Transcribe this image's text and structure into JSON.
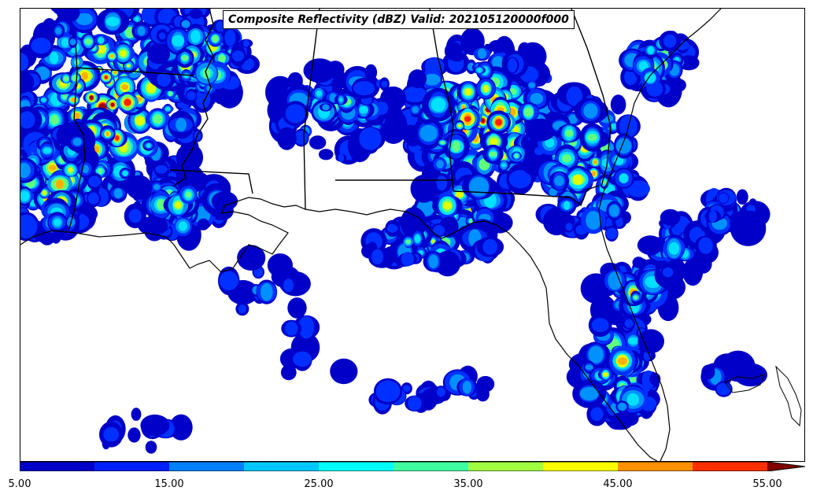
{
  "title": "Composite Reflectivity (dBZ) Valid: 202105120000f000",
  "colorbar": {
    "colors": [
      "#0000c8",
      "#0020ff",
      "#0080ff",
      "#00c8ff",
      "#00ffff",
      "#40ffa0",
      "#a0ff40",
      "#ffff00",
      "#ff9000",
      "#ff3000",
      "#c00000",
      "#800000"
    ],
    "tick_labels": [
      "5.00",
      "15.00",
      "25.00",
      "35.00",
      "45.00",
      "55.00"
    ]
  },
  "legend_palette": [
    "#0000c8",
    "#0030ff",
    "#0090ff",
    "#00e0ff",
    "#60ff80",
    "#e0ff00",
    "#ffb000",
    "#ff2000",
    "#a00000"
  ]
}
